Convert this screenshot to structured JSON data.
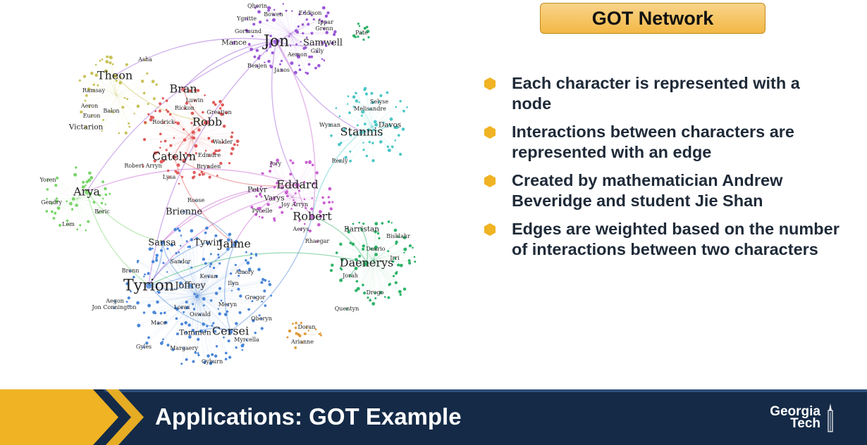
{
  "slide": {
    "title_box": "GOT Network",
    "bullets": [
      "Each character is represented with a node",
      "Interactions between characters are represented with an edge",
      "Created by mathematician Andrew Beveridge and student Jie Shan",
      "Edges are weighted based on the number of interactions between two characters"
    ],
    "footer_title": "Applications: GOT Example",
    "logo_line1": "Georgia",
    "logo_line2": "Tech",
    "colors": {
      "title_box_fill": "#f3b845",
      "bullet_hex": "#f0b323",
      "footer_bg": "#142a47",
      "chevron_gold": "#f0b323"
    }
  },
  "network": {
    "nodes": [
      {
        "label": "Jon",
        "size": "xl",
        "color": "#9b59d6"
      },
      {
        "label": "Qhorin",
        "size": "xs",
        "color": "#9b59d6"
      },
      {
        "label": "Bowen",
        "size": "xs",
        "color": "#9b59d6"
      },
      {
        "label": "Eddison",
        "size": "xs",
        "color": "#9b59d6"
      },
      {
        "label": "Ygritte",
        "size": "xs",
        "color": "#9b59d6"
      },
      {
        "label": "Ippar",
        "size": "xs",
        "color": "#9b59d6"
      },
      {
        "label": "Grenn",
        "size": "xs",
        "color": "#9b59d6"
      },
      {
        "label": "Gormund",
        "size": "xs",
        "color": "#9b59d6"
      },
      {
        "label": "Mance",
        "size": "s",
        "color": "#9b59d6"
      },
      {
        "label": "Samwell",
        "size": "m",
        "color": "#9b59d6"
      },
      {
        "label": "Aemon",
        "size": "xs",
        "color": "#9b59d6"
      },
      {
        "label": "Gilly",
        "size": "xs",
        "color": "#9b59d6"
      },
      {
        "label": "Benjen",
        "size": "xs",
        "color": "#9b59d6"
      },
      {
        "label": "Janos",
        "size": "xs",
        "color": "#9b59d6"
      },
      {
        "label": "Theon",
        "size": "l",
        "color": "#c9c25a"
      },
      {
        "label": "Asha",
        "size": "xs",
        "color": "#c9c25a"
      },
      {
        "label": "Ramsay",
        "size": "xs",
        "color": "#c9c25a"
      },
      {
        "label": "Aeron",
        "size": "xs",
        "color": "#c9c25a"
      },
      {
        "label": "Balon",
        "size": "xs",
        "color": "#c9c25a"
      },
      {
        "label": "Euron",
        "size": "xs",
        "color": "#c9c25a"
      },
      {
        "label": "Victarion",
        "size": "s",
        "color": "#c9c25a"
      },
      {
        "label": "Bran",
        "size": "l",
        "color": "#e05a5a"
      },
      {
        "label": "Luwin",
        "size": "xs",
        "color": "#e05a5a"
      },
      {
        "label": "Rickon",
        "size": "xs",
        "color": "#e05a5a"
      },
      {
        "label": "Greatjon",
        "size": "xs",
        "color": "#e05a5a"
      },
      {
        "label": "Rodrick",
        "size": "xs",
        "color": "#e05a5a"
      },
      {
        "label": "Robb",
        "size": "l",
        "color": "#e05a5a"
      },
      {
        "label": "Walder",
        "size": "xs",
        "color": "#e05a5a"
      },
      {
        "label": "Catelyn",
        "size": "l",
        "color": "#e05a5a"
      },
      {
        "label": "Edmure",
        "size": "xs",
        "color": "#e05a5a"
      },
      {
        "label": "Robert Arryn",
        "size": "xs",
        "color": "#e05a5a"
      },
      {
        "label": "Brynden",
        "size": "xs",
        "color": "#e05a5a"
      },
      {
        "label": "Lysa",
        "size": "xs",
        "color": "#e05a5a"
      },
      {
        "label": "Melisandre",
        "size": "xs",
        "color": "#4cc7c7"
      },
      {
        "label": "Selyse",
        "size": "xs",
        "color": "#4cc7c7"
      },
      {
        "label": "Davos",
        "size": "s",
        "color": "#4cc7c7"
      },
      {
        "label": "Wyman",
        "size": "xs",
        "color": "#4cc7c7"
      },
      {
        "label": "Stannis",
        "size": "l",
        "color": "#4cc7c7"
      },
      {
        "label": "Renly",
        "size": "xs",
        "color": "#4cc7c7"
      },
      {
        "label": "Jory",
        "size": "xs",
        "color": "#c85fd0"
      },
      {
        "label": "Eddard",
        "size": "l",
        "color": "#c85fd0"
      },
      {
        "label": "Petyr",
        "size": "s",
        "color": "#c85fd0"
      },
      {
        "label": "Varys",
        "size": "s",
        "color": "#c85fd0"
      },
      {
        "label": "Joy Arryn",
        "size": "xs",
        "color": "#c85fd0"
      },
      {
        "label": "Pycelle",
        "size": "xs",
        "color": "#c85fd0"
      },
      {
        "label": "Robert",
        "size": "l",
        "color": "#c85fd0"
      },
      {
        "label": "Aerys",
        "size": "xs",
        "color": "#c85fd0"
      },
      {
        "label": "Rhaegar",
        "size": "xs",
        "color": "#c85fd0"
      },
      {
        "label": "Yoren",
        "size": "xs",
        "color": "#7ad46a"
      },
      {
        "label": "Arya",
        "size": "l",
        "color": "#7ad46a"
      },
      {
        "label": "Gendry",
        "size": "xs",
        "color": "#7ad46a"
      },
      {
        "label": "Beric",
        "size": "xs",
        "color": "#7ad46a"
      },
      {
        "label": "Lem",
        "size": "xs",
        "color": "#7ad46a"
      },
      {
        "label": "Roose",
        "size": "xs",
        "color": "#8aa7d8"
      },
      {
        "label": "Brienne",
        "size": "m",
        "color": "#8aa7d8"
      },
      {
        "label": "Sansa",
        "size": "m",
        "color": "#4a86d8"
      },
      {
        "label": "Tywin",
        "size": "m",
        "color": "#4a86d8"
      },
      {
        "label": "Jaime",
        "size": "l",
        "color": "#4a86d8"
      },
      {
        "label": "Sandor",
        "size": "xs",
        "color": "#4a86d8"
      },
      {
        "label": "Bronn",
        "size": "xs",
        "color": "#4a86d8"
      },
      {
        "label": "Kevan",
        "size": "xs",
        "color": "#4a86d8"
      },
      {
        "label": "Amory",
        "size": "xs",
        "color": "#4a86d8"
      },
      {
        "label": "Tyrion",
        "size": "xl",
        "color": "#4a86d8"
      },
      {
        "label": "Joffrey",
        "size": "m",
        "color": "#4a86d8"
      },
      {
        "label": "Ilyn",
        "size": "xs",
        "color": "#4a86d8"
      },
      {
        "label": "Gregor",
        "size": "xs",
        "color": "#4a86d8"
      },
      {
        "label": "Aegon",
        "size": "xs",
        "color": "#4a86d8"
      },
      {
        "label": "Jon Connington",
        "size": "xs",
        "color": "#4a86d8"
      },
      {
        "label": "Loras",
        "size": "xs",
        "color": "#4a86d8"
      },
      {
        "label": "Oswald",
        "size": "xs",
        "color": "#4a86d8"
      },
      {
        "label": "Meryn",
        "size": "xs",
        "color": "#4a86d8"
      },
      {
        "label": "Mace",
        "size": "xs",
        "color": "#4a86d8"
      },
      {
        "label": "Oberyn",
        "size": "xs",
        "color": "#4a86d8"
      },
      {
        "label": "Tommen",
        "size": "s",
        "color": "#4a86d8"
      },
      {
        "label": "Cersei",
        "size": "l",
        "color": "#4a86d8"
      },
      {
        "label": "Myrcella",
        "size": "xs",
        "color": "#4a86d8"
      },
      {
        "label": "Gyles",
        "size": "xs",
        "color": "#4a86d8"
      },
      {
        "label": "Margaery",
        "size": "xs",
        "color": "#4a86d8"
      },
      {
        "label": "Qyburn",
        "size": "xs",
        "color": "#4a86d8"
      },
      {
        "label": "Doran",
        "size": "xs",
        "color": "#e09a3a"
      },
      {
        "label": "Arianne",
        "size": "xs",
        "color": "#e09a3a"
      },
      {
        "label": "Barristan",
        "size": "s",
        "color": "#2eb36a"
      },
      {
        "label": "Daario",
        "size": "xs",
        "color": "#2eb36a"
      },
      {
        "label": "Irri",
        "size": "xs",
        "color": "#2eb36a"
      },
      {
        "label": "Daenerys",
        "size": "l",
        "color": "#2eb36a"
      },
      {
        "label": "Jorah",
        "size": "xs",
        "color": "#2eb36a"
      },
      {
        "label": "Drogo",
        "size": "xs",
        "color": "#2eb36a"
      },
      {
        "label": "Quentyn",
        "size": "xs",
        "color": "#2eb36a"
      },
      {
        "label": "Pate",
        "size": "xs",
        "color": "#2eb36a"
      },
      {
        "label": "Bisklahr",
        "size": "xs",
        "color": "#2eb36a"
      }
    ]
  }
}
